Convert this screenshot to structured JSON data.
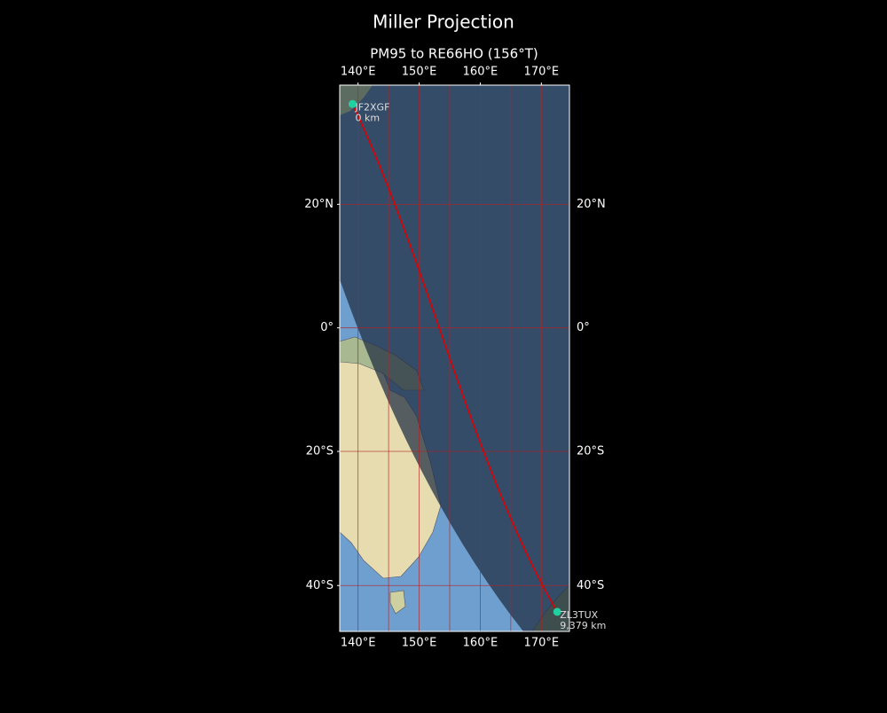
{
  "title": "Miller Projection",
  "subtitle": "PM95 to RE66HO (156°T)",
  "map": {
    "projection": "miller",
    "lonlim": [
      137,
      174.6
    ],
    "latlim": [
      -46.2,
      37.9
    ],
    "lon_ticks": [
      {
        "value": 140,
        "label": "140°E"
      },
      {
        "value": 150,
        "label": "150°E"
      },
      {
        "value": 160,
        "label": "160°E"
      },
      {
        "value": 170,
        "label": "170°E"
      }
    ],
    "lat_ticks": [
      {
        "value": 20,
        "label": "20°N"
      },
      {
        "value": 0,
        "label": "0°"
      },
      {
        "value": -20,
        "label": "20°S"
      },
      {
        "value": -40,
        "label": "40°S"
      }
    ],
    "lon_gridlines": [
      140,
      145,
      150,
      155,
      160,
      165,
      170
    ],
    "lat_gridlines": [
      20,
      0,
      -20,
      -40
    ],
    "grid_color": "#b22222",
    "path_color": "#e00000",
    "station_color": "#20d0a0",
    "stations": [
      {
        "name": "JF2XGF",
        "distance": "0 km",
        "lon": 139.1,
        "lat": 35.2
      },
      {
        "name": "ZL3TUX",
        "distance": "9,379 km",
        "lon": 172.6,
        "lat": -43.6
      }
    ]
  }
}
